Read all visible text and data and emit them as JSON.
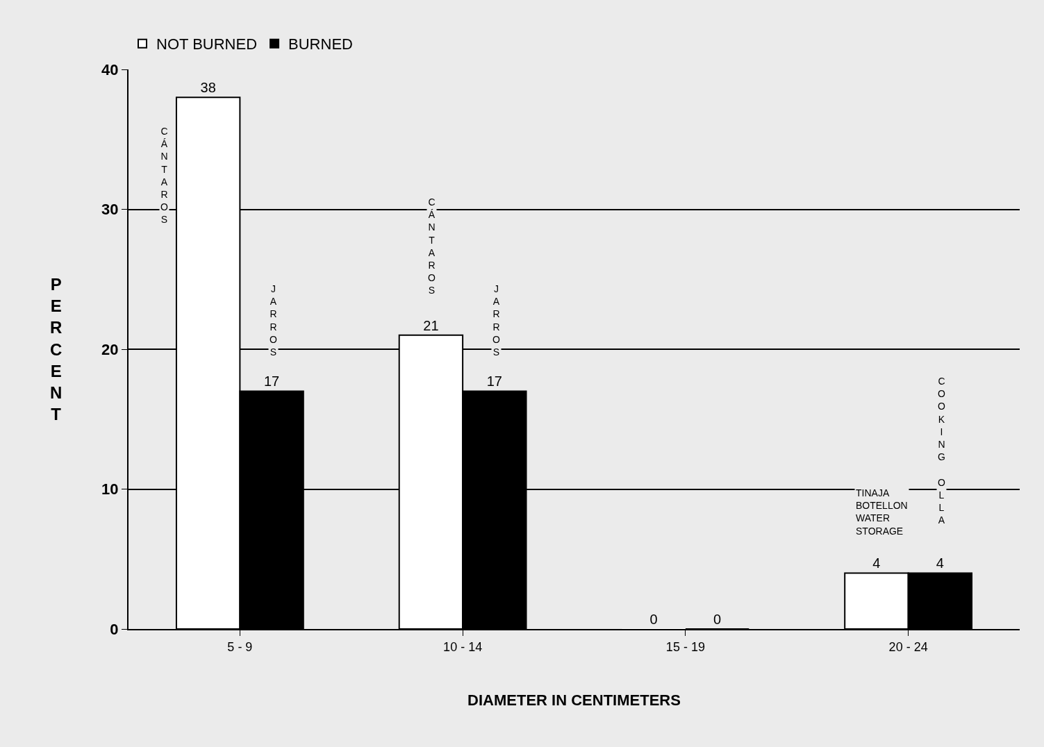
{
  "chart_data": {
    "type": "bar",
    "xlabel": "DIAMETER IN CENTIMETERS",
    "ylabel": "PERCENT",
    "categories": [
      "5 - 9",
      "10 - 14",
      "15 - 19",
      "20 - 24"
    ],
    "series": [
      {
        "name": "NOT BURNED",
        "color": "#ffffff",
        "values": [
          38,
          21,
          0,
          4
        ]
      },
      {
        "name": "BURNED",
        "color": "#000000",
        "values": [
          17,
          17,
          0,
          4
        ]
      }
    ],
    "data_labels": true,
    "ylim": [
      0,
      40
    ],
    "yticks": [
      0,
      10,
      20,
      30,
      40
    ],
    "grid": "y",
    "legend": "top left",
    "annotations": [
      "CÁNTAROS",
      "JARROS",
      "CÁNTAROS",
      "JARROS",
      "TINAJA\nBOTELLON\nWATER\nSTORAGE",
      "COOKING OLLA"
    ]
  }
}
